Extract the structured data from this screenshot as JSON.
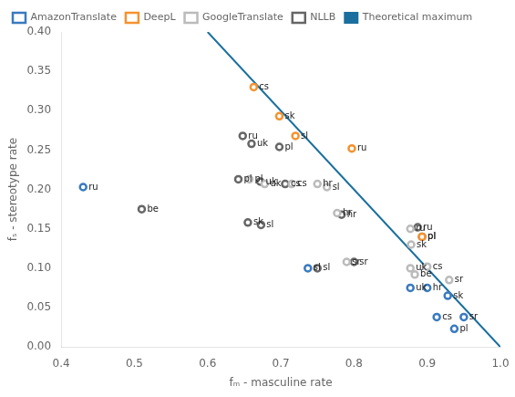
{
  "chart_data": {
    "type": "scatter",
    "xlabel": "fₘ - masculine rate",
    "ylabel": "fₛ - stereotype rate",
    "xlim": [
      0.4,
      1.0
    ],
    "ylim": [
      0.0,
      0.4
    ],
    "xticks": [
      0.4,
      0.5,
      0.6,
      0.7,
      0.8,
      0.9,
      {
        "value": 1.0,
        "label": "1.0"
      }
    ],
    "yticks": [
      {
        "value": 0.0,
        "label": "0.00"
      },
      0.05,
      {
        "value": 0.1,
        "label": "0.10"
      },
      0.15,
      {
        "value": 0.2,
        "label": "0.20"
      },
      0.25,
      {
        "value": 0.3,
        "label": "0.30"
      },
      0.35,
      {
        "value": 0.4,
        "label": "0.40"
      }
    ],
    "grid": false,
    "legend": "upper left",
    "series": [
      {
        "name": "AmazonTranslate",
        "type": "scatter",
        "marker": "donut",
        "color": "#3a7abf",
        "x": [
          0.43,
          0.737,
          0.877,
          0.9,
          0.928,
          0.913,
          0.95,
          0.937
        ],
        "y": [
          0.203,
          0.1,
          0.075,
          0.075,
          0.065,
          0.038,
          0.038,
          0.023
        ],
        "labels": [
          "ru",
          "sl",
          "uk",
          "hr",
          "sk",
          "cs",
          "sr",
          "pl"
        ]
      },
      {
        "name": "DeepL",
        "type": "scatter",
        "marker": "donut",
        "color": "#f5922f",
        "x": [
          0.663,
          0.698,
          0.72,
          0.893,
          0.797
        ],
        "y": [
          0.33,
          0.293,
          0.268,
          0.14,
          0.252
        ],
        "labels": [
          "cs",
          "sk",
          "sl",
          "pl",
          "ru"
        ]
      },
      {
        "name": "GoogleTranslate",
        "type": "scatter",
        "marker": "donut",
        "color": "#bbbbbb",
        "x": [
          0.657,
          0.678,
          0.715,
          0.75,
          0.763,
          0.878,
          0.877,
          0.777,
          0.79,
          0.877,
          0.9,
          0.883,
          0.93
        ],
        "y": [
          0.213,
          0.207,
          0.207,
          0.207,
          0.203,
          0.13,
          0.15,
          0.17,
          0.108,
          0.1,
          0.102,
          0.092,
          0.085
        ],
        "labels": [
          "pl",
          "uk",
          "cs",
          "hr",
          "sl",
          "sk",
          "ru",
          "hr",
          "sr",
          "uk",
          "cs",
          "be",
          "sr"
        ]
      },
      {
        "name": "NLLB",
        "type": "scatter",
        "marker": "donut",
        "color": "#666666",
        "x": [
          0.648,
          0.66,
          0.698,
          0.642,
          0.672,
          0.706,
          0.51,
          0.655,
          0.673,
          0.783,
          0.8,
          0.75,
          0.887,
          0.893
        ],
        "y": [
          0.268,
          0.258,
          0.254,
          0.213,
          0.21,
          0.207,
          0.175,
          0.158,
          0.155,
          0.168,
          0.108,
          0.1,
          0.152,
          0.14
        ],
        "labels": [
          "ru",
          "uk",
          "pl",
          "pl",
          "uk",
          "cs",
          "be",
          "sk",
          "sl",
          "hr",
          "sr",
          "sl",
          "ru",
          "pl"
        ]
      },
      {
        "name": "Theoretical maximum",
        "type": "line",
        "line_style": "solid",
        "color": "#1a6f9e",
        "x": [
          0.6,
          1.0
        ],
        "y": [
          0.4,
          0.0
        ]
      }
    ]
  }
}
